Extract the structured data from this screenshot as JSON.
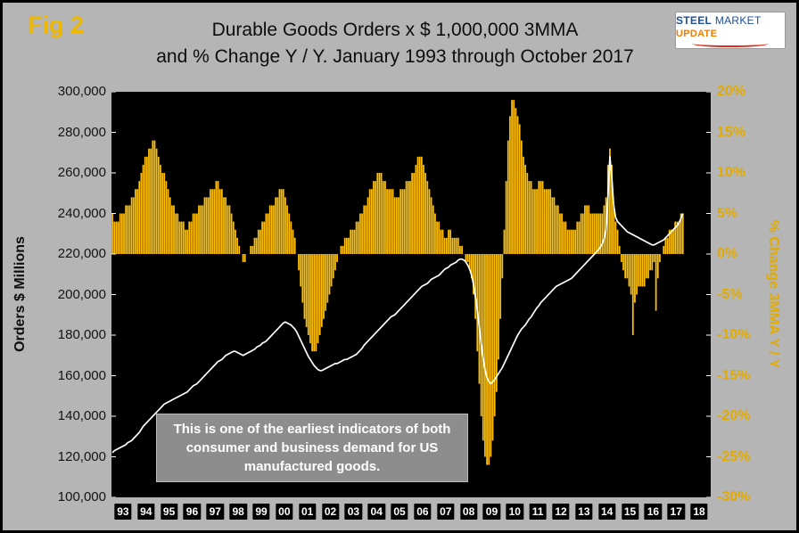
{
  "figure_label": "Fig 2",
  "title_line1": "Durable Goods Orders x $ 1,000,000 3MMA",
  "title_line2": "and % Change Y / Y. January 1993 through October 2017",
  "logo": {
    "steel": "STEEL",
    "market": "MARKET",
    "update": "UPDATE"
  },
  "annotation": {
    "line1": "This is one of the earliest indicators of both",
    "line2": "consumer and business demand for US",
    "line3": "manufactured goods."
  },
  "left_axis": {
    "title": "Orders $ Millions",
    "ticks": [
      "300,000",
      "280,000",
      "260,000",
      "240,000",
      "220,000",
      "200,000",
      "180,000",
      "160,000",
      "140,000",
      "120,000",
      "100,000"
    ]
  },
  "right_axis": {
    "title": "% Change 3MMA Y / Y",
    "ticks": [
      "20%",
      "15%",
      "10%",
      "5%",
      "0%",
      "-5%",
      "-10%",
      "-15%",
      "-20%",
      "-25%",
      "-30%"
    ]
  },
  "x_axis": {
    "years": [
      "93",
      "94",
      "95",
      "96",
      "97",
      "98",
      "99",
      "00",
      "01",
      "02",
      "03",
      "04",
      "05",
      "06",
      "07",
      "08",
      "09",
      "10",
      "11",
      "12",
      "13",
      "14",
      "15",
      "16",
      "17",
      "18"
    ]
  },
  "colors": {
    "gold": "#ffc000",
    "line": "#ffffff",
    "plot_bg": "#000000",
    "page_bg": "#b5b5b5",
    "tick": "#ffffff"
  },
  "chart_data": {
    "type": "bar+line",
    "frequency": "monthly",
    "start": "1993-01",
    "end": "2017-10",
    "left_ylabel": "Orders $ Millions",
    "right_ylabel": "% Change 3MMA Y / Y",
    "left_ylim": [
      100000,
      300000
    ],
    "right_ylim": [
      -30,
      20
    ],
    "grid": false,
    "legend": "none",
    "series": [
      {
        "name": "% Change 3MMA Y / Y",
        "type": "bar",
        "axis": "right",
        "color": "#ffc000",
        "values": [
          5,
          4,
          4,
          4,
          5,
          5,
          5,
          6,
          6,
          6,
          7,
          7,
          8,
          8,
          9,
          10,
          11,
          12,
          12,
          13,
          13,
          14,
          14,
          13,
          12,
          11,
          10,
          10,
          9,
          8,
          7,
          6,
          6,
          5,
          5,
          4,
          4,
          4,
          3,
          3,
          4,
          4,
          5,
          5,
          5,
          6,
          6,
          6,
          7,
          7,
          7,
          8,
          8,
          8,
          9,
          9,
          8,
          8,
          7,
          7,
          6,
          6,
          5,
          4,
          3,
          2,
          1,
          0,
          -1,
          -1,
          0,
          0,
          1,
          1,
          2,
          2,
          3,
          3,
          4,
          4,
          5,
          5,
          6,
          6,
          6,
          7,
          7,
          8,
          8,
          8,
          7,
          6,
          5,
          4,
          3,
          2,
          0,
          -2,
          -4,
          -6,
          -8,
          -9,
          -10,
          -11,
          -12,
          -12,
          -12,
          -11,
          -10,
          -9,
          -8,
          -7,
          -6,
          -5,
          -4,
          -3,
          -2,
          -1,
          0,
          1,
          1,
          2,
          2,
          2,
          3,
          3,
          3,
          4,
          4,
          5,
          5,
          6,
          6,
          7,
          8,
          8,
          9,
          9,
          10,
          10,
          10,
          9,
          9,
          8,
          8,
          8,
          8,
          7,
          7,
          7,
          8,
          8,
          8,
          9,
          9,
          9,
          10,
          10,
          11,
          12,
          12,
          12,
          11,
          10,
          9,
          8,
          7,
          6,
          5,
          4,
          4,
          3,
          3,
          2,
          2,
          3,
          3,
          2,
          2,
          2,
          2,
          1,
          1,
          0,
          -1,
          -1,
          -2,
          -3,
          -5,
          -8,
          -12,
          -16,
          -20,
          -23,
          -25,
          -26,
          -26,
          -25,
          -23,
          -20,
          -17,
          -13,
          -8,
          -3,
          3,
          9,
          14,
          17,
          19,
          19,
          18,
          17,
          16,
          14,
          12,
          11,
          10,
          9,
          9,
          8,
          8,
          8,
          9,
          9,
          9,
          8,
          8,
          8,
          8,
          7,
          7,
          6,
          6,
          5,
          5,
          4,
          4,
          3,
          3,
          3,
          3,
          3,
          4,
          4,
          5,
          5,
          6,
          6,
          6,
          5,
          5,
          5,
          5,
          5,
          5,
          5,
          6,
          7,
          11,
          13,
          11,
          6,
          4,
          3,
          1,
          -1,
          -2,
          -3,
          -3,
          -4,
          -5,
          -10,
          -6,
          -5,
          -4,
          -4,
          -4,
          -4,
          -3,
          -3,
          -2,
          -2,
          -1,
          -7,
          -3,
          -1,
          0,
          1,
          2,
          2,
          3,
          3,
          3,
          4,
          4,
          4,
          5,
          5
        ]
      },
      {
        "name": "Durable Goods Orders $1,000,000 3MMA",
        "type": "line",
        "axis": "left",
        "color": "#ffffff",
        "values": [
          122000,
          123000,
          123500,
          124000,
          124500,
          125000,
          125500,
          126000,
          127000,
          127500,
          128000,
          129000,
          130000,
          131000,
          132000,
          133500,
          135000,
          136000,
          137000,
          138000,
          139000,
          140000,
          141000,
          142000,
          143000,
          144000,
          145000,
          146000,
          146500,
          147000,
          147500,
          148000,
          148500,
          149000,
          149500,
          150000,
          150500,
          151000,
          151500,
          152000,
          153000,
          154000,
          155000,
          155500,
          156000,
          157000,
          158000,
          159000,
          160000,
          161000,
          162000,
          163000,
          164000,
          165000,
          166000,
          167000,
          167500,
          168000,
          169000,
          170000,
          170500,
          171000,
          171500,
          172000,
          172000,
          171500,
          171000,
          170500,
          170000,
          170500,
          171000,
          171500,
          172000,
          172500,
          173000,
          174000,
          174500,
          175000,
          176000,
          176500,
          177000,
          178000,
          179000,
          180000,
          181000,
          182000,
          183000,
          184000,
          185000,
          186000,
          186500,
          186000,
          185500,
          185000,
          184000,
          183000,
          181500,
          179500,
          177500,
          175500,
          173500,
          171500,
          169500,
          168000,
          166500,
          165000,
          164000,
          163000,
          162500,
          162500,
          163000,
          163500,
          164000,
          164500,
          165000,
          165500,
          166000,
          166000,
          166500,
          167000,
          167500,
          168000,
          168000,
          168500,
          169000,
          169500,
          170000,
          170500,
          171500,
          172500,
          173500,
          175000,
          176000,
          177000,
          178000,
          179000,
          180000,
          181000,
          182000,
          183000,
          184000,
          185000,
          186000,
          187000,
          188000,
          189000,
          189500,
          190000,
          191000,
          192000,
          193000,
          194000,
          195000,
          196000,
          197000,
          198000,
          199000,
          200000,
          201000,
          202000,
          203000,
          204000,
          204500,
          205000,
          205500,
          206500,
          207500,
          208000,
          208500,
          209000,
          209500,
          210500,
          211500,
          212500,
          213000,
          213500,
          214500,
          215000,
          215500,
          216000,
          217000,
          217500,
          217500,
          217000,
          216000,
          214500,
          212500,
          209500,
          205000,
          199000,
          192000,
          184000,
          176000,
          169000,
          163000,
          159000,
          157000,
          156000,
          157000,
          158000,
          159500,
          161000,
          162500,
          164000,
          166000,
          168000,
          170000,
          172000,
          174000,
          176000,
          178000,
          180000,
          181500,
          183000,
          184000,
          185000,
          186500,
          188000,
          189000,
          190500,
          192000,
          193500,
          194500,
          196000,
          197000,
          198000,
          199000,
          200000,
          201000,
          202000,
          203000,
          204000,
          204500,
          205000,
          205500,
          206000,
          206500,
          207000,
          207500,
          208000,
          209000,
          210000,
          211000,
          212000,
          213000,
          214000,
          215000,
          216000,
          217000,
          218000,
          219000,
          220000,
          221000,
          222000,
          223500,
          225000,
          227500,
          232000,
          248000,
          268000,
          258000,
          244000,
          238000,
          236000,
          235000,
          234000,
          233000,
          232000,
          231000,
          230500,
          230000,
          229500,
          229000,
          228500,
          228000,
          227500,
          227000,
          226500,
          226000,
          225500,
          225000,
          224500,
          224500,
          225000,
          225500,
          226000,
          226500,
          227000,
          228000,
          229000,
          230000,
          231000,
          232000,
          233000,
          234000,
          235500,
          237500,
          240000
        ]
      }
    ]
  }
}
